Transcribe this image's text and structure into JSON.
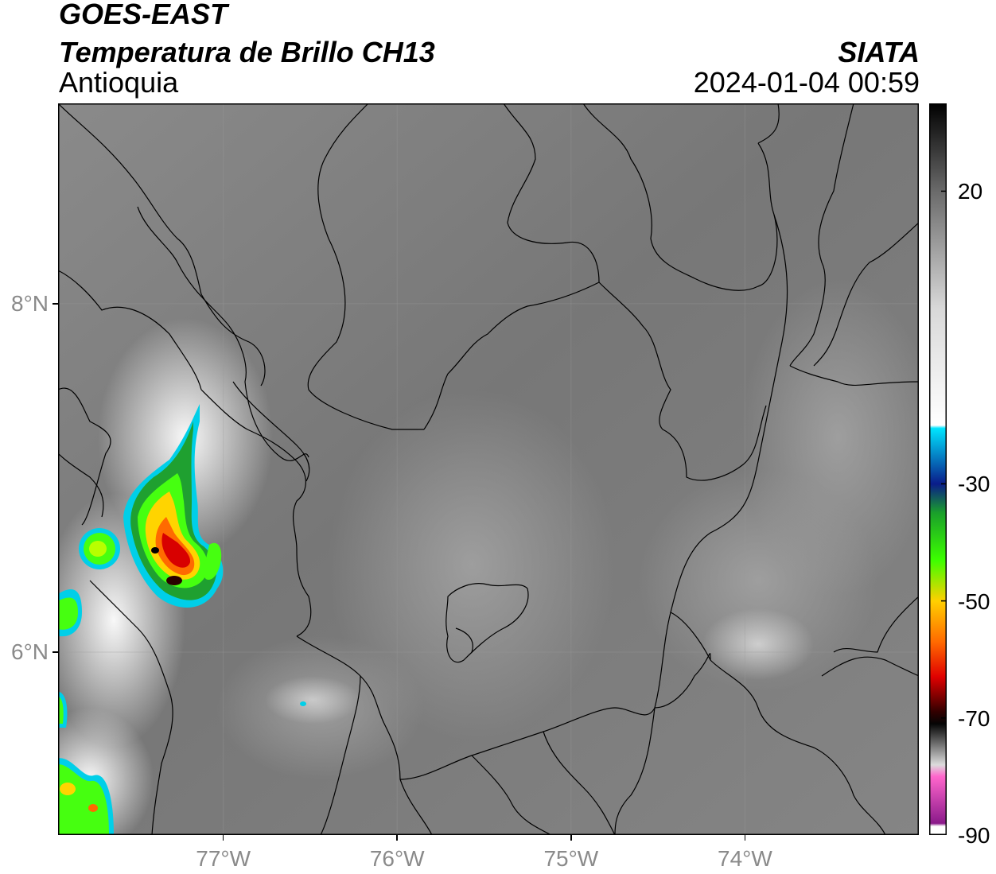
{
  "header": {
    "satellite": "GOES-EAST",
    "product": "Temperatura de Brillo CH13",
    "region": "Antioquia",
    "organization": "SIATA",
    "timestamp": "2024-01-04 00:59"
  },
  "map": {
    "lon_range": [
      -77.95,
      -73.0
    ],
    "lat_range": [
      4.95,
      9.15
    ],
    "lon_ticks": [
      {
        "value": -77,
        "label": "77°W"
      },
      {
        "value": -76,
        "label": "76°W"
      },
      {
        "value": -75,
        "label": "75°W"
      },
      {
        "value": -74,
        "label": "74°W"
      }
    ],
    "lat_ticks": [
      {
        "value": 8,
        "label": "8°N"
      },
      {
        "value": 6,
        "label": "6°N"
      }
    ],
    "background_color": "#7a7a7a",
    "storm_cells": [
      {
        "lon": -77.3,
        "lat": 6.55,
        "min_temp": -72
      },
      {
        "lon": -77.75,
        "lat": 6.65,
        "min_temp": -45
      },
      {
        "lon": -77.9,
        "lat": 6.35,
        "min_temp": -42
      },
      {
        "lon": -77.9,
        "lat": 5.2,
        "min_temp": -55
      },
      {
        "lon": -77.95,
        "lat": 5.75,
        "min_temp": -38
      }
    ]
  },
  "colorbar": {
    "range": [
      -90,
      35
    ],
    "ticks": [
      {
        "value": 20,
        "label": "20"
      },
      {
        "value": -30,
        "label": "-30"
      },
      {
        "value": -50,
        "label": "-50"
      },
      {
        "value": -70,
        "label": "-70"
      },
      {
        "value": -90,
        "label": "-90"
      }
    ],
    "stops": [
      {
        "value": 35,
        "color": "#000000"
      },
      {
        "value": 20,
        "color": "#6a6a6a"
      },
      {
        "value": 0,
        "color": "#d8d8d8"
      },
      {
        "value": -20,
        "color": "#ffffff"
      },
      {
        "value": -20.5,
        "color": "#00e5ff"
      },
      {
        "value": -30,
        "color": "#0a1c8a"
      },
      {
        "value": -35,
        "color": "#1aa02a"
      },
      {
        "value": -43,
        "color": "#3cff00"
      },
      {
        "value": -50,
        "color": "#ffd000"
      },
      {
        "value": -57,
        "color": "#ff6a00"
      },
      {
        "value": -63,
        "color": "#e00000"
      },
      {
        "value": -69,
        "color": "#300000"
      },
      {
        "value": -71,
        "color": "#050505"
      },
      {
        "value": -78,
        "color": "#dcdcdc"
      },
      {
        "value": -80,
        "color": "#ff66cc"
      },
      {
        "value": -88,
        "color": "#8a1a8a"
      },
      {
        "value": -88.5,
        "color": "#ffffff"
      },
      {
        "value": -90,
        "color": "#ffffff"
      }
    ]
  }
}
